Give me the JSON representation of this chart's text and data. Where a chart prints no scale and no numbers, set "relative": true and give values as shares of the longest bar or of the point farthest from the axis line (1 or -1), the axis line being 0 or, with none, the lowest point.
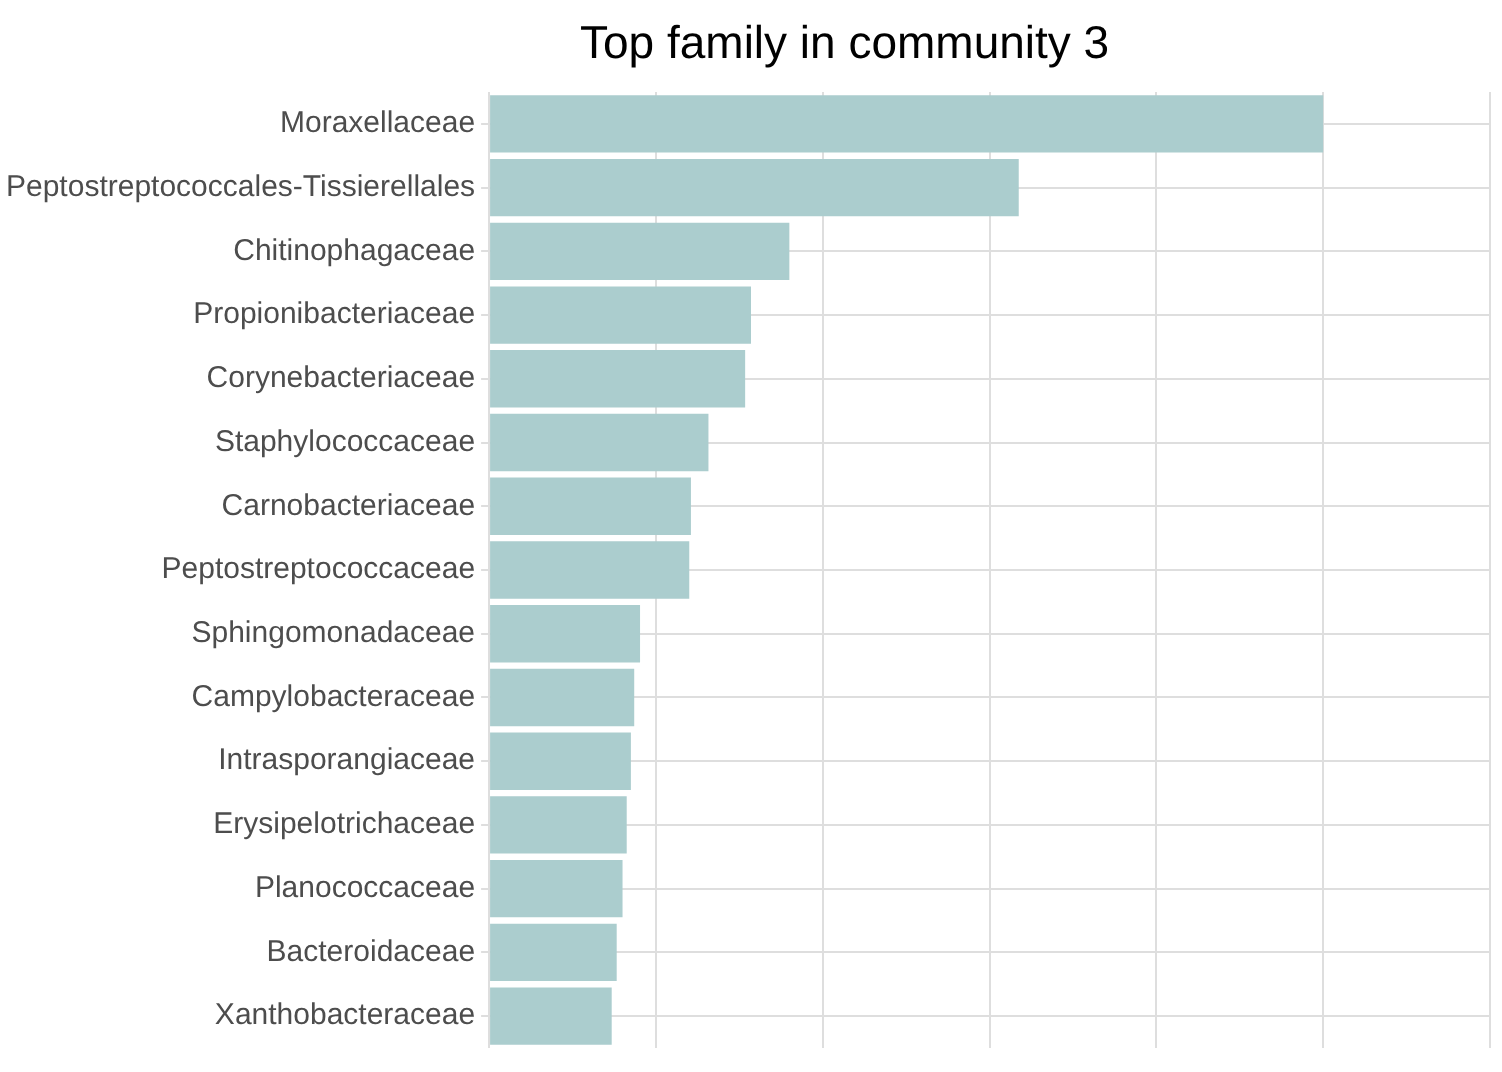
{
  "chart_data": {
    "type": "bar",
    "orientation": "horizontal",
    "relative": true,
    "title": "Top family in community 3",
    "categories": [
      "Moraxellaceae",
      "Peptostreptococcales-Tissierellales",
      "Chitinophagaceae",
      "Propionibacteriaceae",
      "Corynebacteriaceae",
      "Staphylococcaceae",
      "Carnobacteriaceae",
      "Peptostreptococcaceae",
      "Sphingomonadaceae",
      "Campylobacteraceae",
      "Intrasporangiaceae",
      "Erysipelotrichaceae",
      "Planococcaceae",
      "Bacteroidaceae",
      "Xanthobacteraceae"
    ],
    "values": [
      1,
      0.635,
      0.36,
      0.314,
      0.307,
      0.263,
      0.242,
      0.24,
      0.181,
      0.174,
      0.17,
      0.165,
      0.16,
      0.153,
      0.147
    ],
    "color": "#abcdce",
    "grid": true,
    "legend": false
  }
}
